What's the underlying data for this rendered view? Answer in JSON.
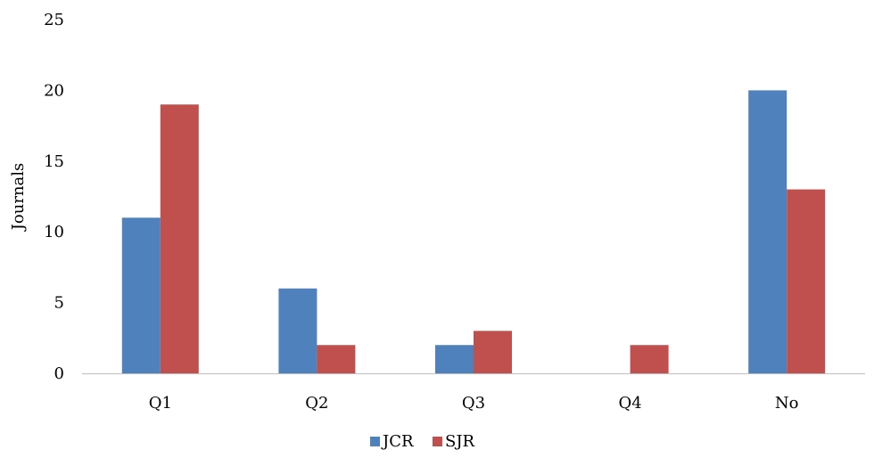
{
  "chart_data": {
    "type": "bar",
    "categories": [
      "Q1",
      "Q2",
      "Q3",
      "Q4",
      "No"
    ],
    "series": [
      {
        "name": "JCR",
        "values": [
          11,
          6,
          2,
          0,
          20
        ],
        "color": "#4F81BD"
      },
      {
        "name": "SJR",
        "values": [
          19,
          2,
          3,
          2,
          13
        ],
        "color": "#C0504D"
      }
    ],
    "ylabel": "Journals",
    "ylim": [
      0,
      25
    ],
    "yticks": [
      0,
      5,
      10,
      15,
      20,
      25
    ],
    "grid": false,
    "legend": "bottom-center"
  }
}
